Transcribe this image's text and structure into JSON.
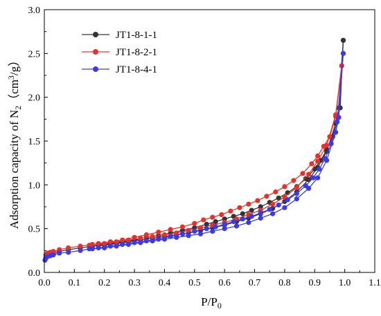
{
  "chart_data": {
    "type": "line",
    "title": "",
    "xlabel": {
      "main": "P/P",
      "sub": "0"
    },
    "ylabel": {
      "pre": "Adsorption capacity of N",
      "sub": "2",
      "mid": "（cm",
      "sup": "3",
      "post": "/g）"
    },
    "xlim": [
      0,
      1.1
    ],
    "ylim": [
      0,
      3.0
    ],
    "x_ticks": [
      "0.0",
      "0.1",
      "0.2",
      "0.3",
      "0.4",
      "0.5",
      "0.6",
      "0.7",
      "0.8",
      "0.9",
      "1.0",
      "1.1"
    ],
    "y_ticks": [
      "0.0",
      "0.5",
      "1.0",
      "1.5",
      "2.0",
      "2.5",
      "3.0"
    ],
    "grid": false,
    "legend_position": "top-left",
    "series": [
      {
        "name": "JT1-8-1-1",
        "color": "#333333",
        "adsorption": {
          "x": [
            0.005,
            0.01,
            0.02,
            0.03,
            0.05,
            0.08,
            0.12,
            0.16,
            0.2,
            0.24,
            0.28,
            0.32,
            0.36,
            0.4,
            0.44,
            0.48,
            0.52,
            0.56,
            0.6,
            0.64,
            0.68,
            0.72,
            0.76,
            0.8,
            0.84,
            0.88,
            0.91,
            0.94,
            0.97,
            0.985,
            0.995
          ],
          "y": [
            0.17,
            0.19,
            0.21,
            0.22,
            0.24,
            0.26,
            0.28,
            0.3,
            0.31,
            0.33,
            0.35,
            0.37,
            0.39,
            0.41,
            0.43,
            0.45,
            0.48,
            0.51,
            0.54,
            0.58,
            0.62,
            0.67,
            0.73,
            0.81,
            0.92,
            1.06,
            1.2,
            1.38,
            1.7,
            1.88,
            2.65
          ]
        },
        "desorption": {
          "x": [
            0.995,
            0.98,
            0.96,
            0.94,
            0.92,
            0.9,
            0.87,
            0.84,
            0.81,
            0.78,
            0.75,
            0.72,
            0.69,
            0.66,
            0.63,
            0.6,
            0.57,
            0.54,
            0.5,
            0.46,
            0.42,
            0.38,
            0.34,
            0.3,
            0.26,
            0.22,
            0.18,
            0.15
          ],
          "y": [
            2.65,
            1.88,
            1.55,
            1.4,
            1.28,
            1.18,
            1.07,
            0.98,
            0.91,
            0.85,
            0.8,
            0.75,
            0.71,
            0.67,
            0.64,
            0.61,
            0.58,
            0.55,
            0.51,
            0.48,
            0.45,
            0.42,
            0.4,
            0.37,
            0.35,
            0.33,
            0.31,
            0.3
          ]
        }
      },
      {
        "name": "JT1-8-2-1",
        "color": "#e8302a",
        "adsorption": {
          "x": [
            0.005,
            0.01,
            0.02,
            0.03,
            0.05,
            0.08,
            0.12,
            0.16,
            0.2,
            0.24,
            0.28,
            0.32,
            0.36,
            0.4,
            0.44,
            0.48,
            0.52,
            0.56,
            0.6,
            0.64,
            0.68,
            0.72,
            0.76,
            0.8,
            0.84,
            0.88,
            0.91,
            0.94,
            0.97,
            0.99
          ],
          "y": [
            0.2,
            0.22,
            0.23,
            0.24,
            0.26,
            0.28,
            0.3,
            0.32,
            0.33,
            0.35,
            0.37,
            0.39,
            0.41,
            0.43,
            0.45,
            0.48,
            0.51,
            0.54,
            0.57,
            0.61,
            0.66,
            0.71,
            0.78,
            0.86,
            0.97,
            1.12,
            1.27,
            1.45,
            1.8,
            2.36
          ]
        },
        "desorption": {
          "x": [
            0.99,
            0.97,
            0.95,
            0.93,
            0.91,
            0.89,
            0.86,
            0.83,
            0.8,
            0.77,
            0.74,
            0.71,
            0.68,
            0.65,
            0.62,
            0.59,
            0.56,
            0.53,
            0.5,
            0.46,
            0.42,
            0.38,
            0.34,
            0.3,
            0.26,
            0.22,
            0.18,
            0.15
          ],
          "y": [
            2.36,
            1.78,
            1.55,
            1.44,
            1.33,
            1.24,
            1.13,
            1.05,
            0.98,
            0.92,
            0.87,
            0.82,
            0.78,
            0.74,
            0.7,
            0.66,
            0.63,
            0.6,
            0.56,
            0.52,
            0.49,
            0.46,
            0.43,
            0.4,
            0.37,
            0.35,
            0.33,
            0.31
          ]
        }
      },
      {
        "name": "JT1-8-4-1",
        "color": "#3a3ae8",
        "adsorption": {
          "x": [
            0.002,
            0.005,
            0.01,
            0.02,
            0.03,
            0.05,
            0.08,
            0.12,
            0.16,
            0.2,
            0.24,
            0.28,
            0.32,
            0.36,
            0.4,
            0.44,
            0.48,
            0.52,
            0.56,
            0.6,
            0.64,
            0.68,
            0.72,
            0.76,
            0.8,
            0.84,
            0.88,
            0.91,
            0.94,
            0.97,
            0.98,
            0.995
          ],
          "y": [
            0.14,
            0.16,
            0.18,
            0.19,
            0.2,
            0.22,
            0.23,
            0.25,
            0.27,
            0.28,
            0.3,
            0.32,
            0.34,
            0.36,
            0.38,
            0.4,
            0.42,
            0.44,
            0.47,
            0.5,
            0.53,
            0.57,
            0.62,
            0.67,
            0.74,
            0.84,
            0.96,
            1.08,
            1.28,
            1.6,
            1.77,
            2.5
          ]
        },
        "desorption": {
          "x": [
            0.995,
            0.975,
            0.955,
            0.935,
            0.915,
            0.895,
            0.87,
            0.84,
            0.81,
            0.78,
            0.75,
            0.72,
            0.69,
            0.66,
            0.63,
            0.6,
            0.57,
            0.54,
            0.5,
            0.46,
            0.42,
            0.38,
            0.34,
            0.3,
            0.26,
            0.22,
            0.18,
            0.15
          ],
          "y": [
            2.5,
            1.72,
            1.47,
            1.3,
            1.18,
            1.08,
            0.99,
            0.9,
            0.83,
            0.77,
            0.72,
            0.68,
            0.64,
            0.61,
            0.58,
            0.55,
            0.52,
            0.5,
            0.47,
            0.44,
            0.41,
            0.38,
            0.36,
            0.34,
            0.32,
            0.3,
            0.28,
            0.27
          ]
        }
      }
    ]
  }
}
